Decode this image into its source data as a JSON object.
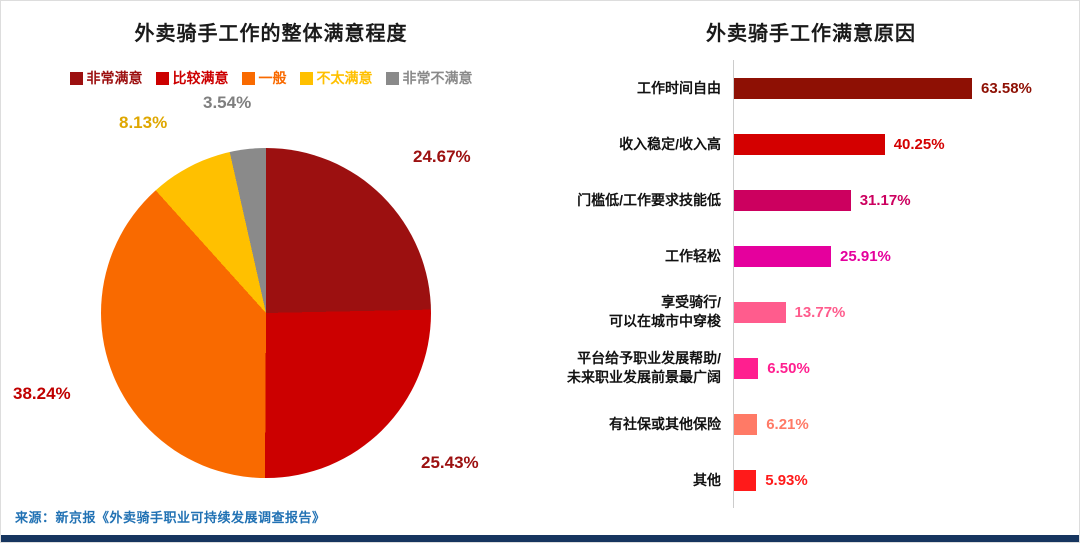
{
  "chart_data": [
    {
      "type": "pie",
      "title": "外卖骑手工作的整体满意程度",
      "legend_position": "top",
      "slices": [
        {
          "label": "非常满意",
          "value": 24.67,
          "display": "24.67%",
          "color": "#9C1010",
          "label_color": "#9C1010"
        },
        {
          "label": "比较满意",
          "value": 25.43,
          "display": "25.43%",
          "color": "#CC0000",
          "label_color": "#9C1010"
        },
        {
          "label": "一般",
          "value": 38.24,
          "display": "38.24%",
          "color": "#F96A00",
          "label_color": "#C00000"
        },
        {
          "label": "不太满意",
          "value": 8.13,
          "display": "8.13%",
          "color": "#FFC000",
          "label_color": "#DFA700"
        },
        {
          "label": "非常不满意",
          "value": 3.54,
          "display": "3.54%",
          "color": "#8A8A8A",
          "label_color": "#7F7F7F"
        }
      ]
    },
    {
      "type": "bar",
      "orientation": "horizontal",
      "title": "外卖骑手工作满意原因",
      "xlim": [
        0,
        70
      ],
      "grid": false,
      "bars": [
        {
          "label": "工作时间自由",
          "value": 63.58,
          "display": "63.58%",
          "color": "#8E1004"
        },
        {
          "label": "收入稳定/收入高",
          "value": 40.25,
          "display": "40.25%",
          "color": "#D40000"
        },
        {
          "label": "门槛低/工作要求技能低",
          "value": 31.17,
          "display": "31.17%",
          "color": "#CC005F"
        },
        {
          "label": "工作轻松",
          "value": 25.91,
          "display": "25.91%",
          "color": "#E5009D"
        },
        {
          "label": "享受骑行/\n可以在城市中穿梭",
          "value": 13.77,
          "display": "13.77%",
          "color": "#FF5C8D"
        },
        {
          "label": "平台给予职业发展帮助/\n未来职业发展前景最广阔",
          "value": 6.5,
          "display": "6.50%",
          "color": "#FF1F8F"
        },
        {
          "label": "有社保或其他保险",
          "value": 6.21,
          "display": "6.21%",
          "color": "#FF7A66"
        },
        {
          "label": "其他",
          "value": 5.93,
          "display": "5.93%",
          "color": "#FF1A1A"
        }
      ]
    }
  ],
  "source": "来源：新京报《外卖骑手职业可持续发展调查报告》"
}
